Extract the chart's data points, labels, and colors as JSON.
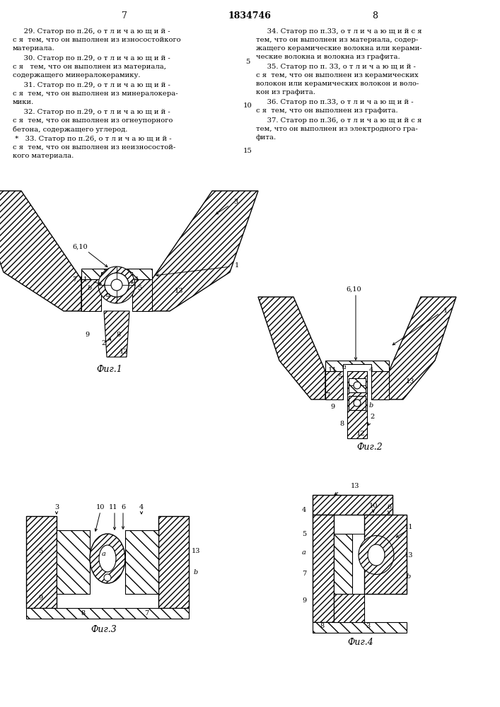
{
  "page_number_left": "7",
  "page_number_center": "1834746",
  "page_number_right": "8",
  "text_left": [
    [
      "     29. Статор по п.26, о т л и ч а ю щ и й -",
      960
    ],
    [
      "с я  тем, что он выполнен из износостойкого",
      948
    ],
    [
      "материала.",
      936
    ],
    [
      "     30. Статор по п.29, о т л и ч а ю щ и й -",
      922
    ],
    [
      "с я   тем, что он выполнен из материала,",
      910
    ],
    [
      "содержащего минералокерамику.",
      898
    ],
    [
      "     31. Статор по п.29, о т л и ч а ю щ и й -",
      884
    ],
    [
      "с я  тем, что он выполнен из минералокера-",
      872
    ],
    [
      "мики.",
      860
    ],
    [
      "     32. Статор по п.29, о т л и ч а ю щ и й -",
      846
    ],
    [
      "с я  тем, что он выполнен из огнеупорного",
      834
    ],
    [
      "бетона, содержащего углерод.",
      822
    ],
    [
      " *   33. Статор по п.26, о т л и ч а ю щ и й -",
      808
    ],
    [
      "с я  тем, что он выполнен из неизносостой-",
      796
    ],
    [
      "кого материала.",
      784
    ]
  ],
  "text_right": [
    [
      "     34. Статор по п.33, о т л и ч а ю щ и й с я",
      960
    ],
    [
      "тем, что он выполнен из материала, содер-",
      948
    ],
    [
      "жащего керамические волокна или керами-",
      936
    ],
    [
      "ческие волокна и волокна из графита.",
      924
    ],
    [
      "     35. Статор по п. 33, о т л и ч а ю щ и й -",
      910
    ],
    [
      "с я  тем, что он выполнен из керамических",
      898
    ],
    [
      "волокон или керамических волокон и воло-",
      886
    ],
    [
      "кон из графита.",
      874
    ],
    [
      "     36. Статор по п.33, о т л и ч а ю щ и й -",
      860
    ],
    [
      "с я  тем, что он выполнен из графита.",
      848
    ],
    [
      "     37. Статор по п.36, о т л и ч а ю щ и й с я",
      834
    ],
    [
      "тем, что он выполнен из электродного гра-",
      822
    ],
    [
      "фита.",
      810
    ]
  ],
  "background_color": "#ffffff"
}
